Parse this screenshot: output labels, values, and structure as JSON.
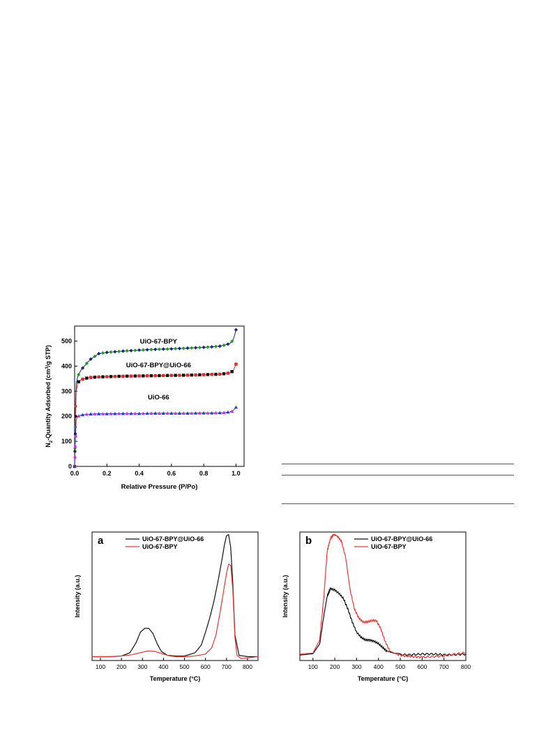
{
  "chart_data": [
    {
      "type": "scatter",
      "xlabel": "Relative Pressure (P/Po)",
      "ylabel_main": "N",
      "ylabel_sub": "2",
      "ylabel_mid": "-Quantity Adsorbed (cm",
      "ylabel_sup": "3",
      "ylabel_end": "/g STP)",
      "xlim": [
        0.0,
        1.05
      ],
      "ylim": [
        0,
        560
      ],
      "xticks": [
        "0.0",
        "0.2",
        "0.4",
        "0.6",
        "0.8",
        "1.0"
      ],
      "yticks": [
        "0",
        "100",
        "200",
        "300",
        "400",
        "500"
      ],
      "annotations": [
        "UiO-67-BPY",
        "UiO-67-BPY@UiO-66",
        "UiO-66"
      ],
      "series": [
        {
          "name": "UiO-67-BPY",
          "color": "#1a237e",
          "color2": "#1f9d2a",
          "x": [
            0.0,
            0.005,
            0.01,
            0.02,
            0.04,
            0.06,
            0.08,
            0.1,
            0.15,
            0.2,
            0.3,
            0.4,
            0.5,
            0.6,
            0.7,
            0.8,
            0.85,
            0.9,
            0.93,
            0.96,
            0.98,
            0.99,
            1.0
          ],
          "y": [
            0,
            240,
            330,
            360,
            385,
            400,
            415,
            428,
            450,
            455,
            460,
            464,
            467,
            469,
            472,
            475,
            477,
            480,
            484,
            490,
            502,
            520,
            545
          ]
        },
        {
          "name": "UiO-67-BPY@UiO-66",
          "color": "#d32f2f",
          "color2": "#111111",
          "x": [
            0.0,
            0.005,
            0.01,
            0.02,
            0.04,
            0.06,
            0.08,
            0.1,
            0.15,
            0.2,
            0.3,
            0.4,
            0.5,
            0.6,
            0.7,
            0.8,
            0.85,
            0.9,
            0.93,
            0.96,
            0.98,
            0.99,
            1.0
          ],
          "y": [
            0,
            200,
            300,
            335,
            346,
            350,
            353,
            355,
            357,
            358,
            360,
            361,
            362,
            363,
            364,
            366,
            367,
            368,
            370,
            373,
            380,
            392,
            408
          ]
        },
        {
          "name": "UiO-66",
          "color": "#1e3ccf",
          "color2": "#cc33cc",
          "x": [
            0.0,
            0.005,
            0.01,
            0.02,
            0.04,
            0.06,
            0.08,
            0.1,
            0.15,
            0.2,
            0.3,
            0.4,
            0.5,
            0.6,
            0.7,
            0.8,
            0.85,
            0.9,
            0.93,
            0.96,
            0.98,
            0.99,
            1.0
          ],
          "y": [
            0,
            120,
            185,
            200,
            205,
            207,
            208,
            209,
            210,
            210,
            211,
            211,
            212,
            212,
            212,
            213,
            213,
            214,
            215,
            217,
            221,
            228,
            236
          ]
        }
      ]
    },
    {
      "type": "line",
      "panel_label": "a",
      "xlabel": "Temperature (°C)",
      "ylabel": "Intensity (a.u.)",
      "xlim": [
        60,
        850
      ],
      "ylim": [
        0,
        1
      ],
      "xticks": [
        "100",
        "200",
        "300",
        "400",
        "500",
        "600",
        "700",
        "800"
      ],
      "legend_position": "top-left",
      "series": [
        {
          "name": "UiO-67-BPY@UiO-66",
          "color": "#111111",
          "x": [
            60,
            150,
            200,
            240,
            270,
            290,
            310,
            330,
            350,
            370,
            390,
            420,
            460,
            500,
            550,
            580,
            600,
            620,
            640,
            660,
            680,
            690,
            700,
            710,
            720,
            730,
            740,
            760,
            800,
            850
          ],
          "y": [
            0.03,
            0.03,
            0.035,
            0.06,
            0.14,
            0.22,
            0.25,
            0.25,
            0.21,
            0.13,
            0.07,
            0.04,
            0.035,
            0.035,
            0.06,
            0.12,
            0.22,
            0.33,
            0.46,
            0.62,
            0.8,
            0.9,
            0.97,
            0.98,
            0.88,
            0.6,
            0.2,
            0.04,
            0.03,
            0.03
          ]
        },
        {
          "name": "UiO-67-BPY",
          "color": "#e53935",
          "x": [
            60,
            150,
            200,
            250,
            300,
            330,
            360,
            400,
            430,
            460,
            500,
            550,
            600,
            630,
            650,
            670,
            690,
            700,
            710,
            720,
            730,
            740,
            750,
            770,
            800,
            850
          ],
          "y": [
            0.03,
            0.03,
            0.035,
            0.045,
            0.065,
            0.075,
            0.07,
            0.05,
            0.035,
            0.03,
            0.03,
            0.035,
            0.05,
            0.1,
            0.2,
            0.38,
            0.58,
            0.68,
            0.75,
            0.74,
            0.55,
            0.18,
            0.04,
            0.015,
            0.02,
            0.03
          ]
        }
      ]
    },
    {
      "type": "line",
      "panel_label": "b",
      "xlabel": "Temperature (°C)",
      "ylabel": "Intensity (a.u.)",
      "xlim": [
        40,
        800
      ],
      "ylim": [
        0,
        1
      ],
      "xticks": [
        "100",
        "200",
        "300",
        "400",
        "500",
        "600",
        "700",
        "800"
      ],
      "legend_position": "top-right",
      "series": [
        {
          "name": "UiO-67-BPY@UiO-66",
          "color": "#111111",
          "x": [
            40,
            100,
            130,
            150,
            165,
            180,
            200,
            220,
            240,
            260,
            280,
            300,
            320,
            340,
            360,
            380,
            400,
            420,
            440,
            470,
            500,
            550,
            600,
            650,
            700,
            750,
            800
          ],
          "y": [
            0.05,
            0.05,
            0.12,
            0.35,
            0.5,
            0.56,
            0.55,
            0.52,
            0.48,
            0.4,
            0.3,
            0.22,
            0.18,
            0.16,
            0.16,
            0.15,
            0.13,
            0.1,
            0.07,
            0.05,
            0.045,
            0.045,
            0.05,
            0.05,
            0.045,
            0.045,
            0.05
          ]
        },
        {
          "name": "UiO-67-BPY",
          "color": "#e53935",
          "x": [
            40,
            100,
            130,
            150,
            165,
            180,
            195,
            210,
            230,
            250,
            270,
            290,
            310,
            330,
            350,
            370,
            390,
            410,
            430,
            450,
            480,
            520,
            560,
            600,
            650,
            700,
            750,
            800
          ],
          "y": [
            0.05,
            0.05,
            0.15,
            0.5,
            0.85,
            0.95,
            0.98,
            0.97,
            0.93,
            0.8,
            0.55,
            0.4,
            0.33,
            0.3,
            0.3,
            0.31,
            0.31,
            0.25,
            0.15,
            0.08,
            0.05,
            0.035,
            0.03,
            0.025,
            0.03,
            0.035,
            0.05,
            0.06
          ]
        }
      ]
    }
  ]
}
